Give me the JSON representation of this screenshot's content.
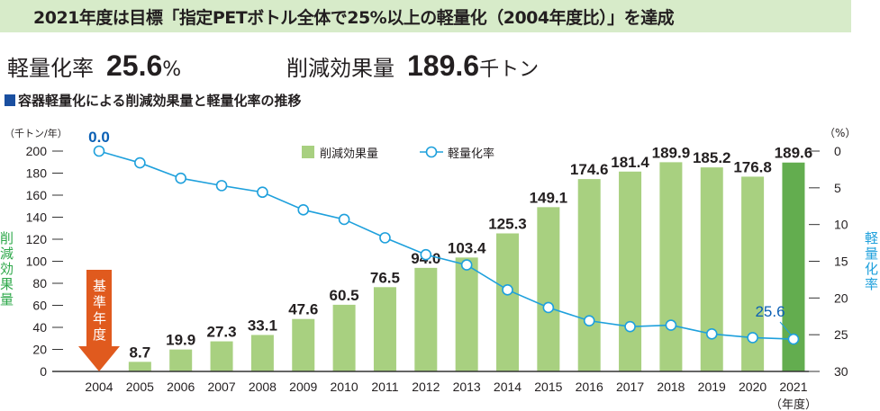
{
  "banner": {
    "title": "2021年度は目標「指定PETボトル全体で25%以上の軽量化（2004年度比）」を達成"
  },
  "kpis": {
    "rate_label": "軽量化率",
    "rate_value": "25.6",
    "rate_unit": "%",
    "reduction_label": "削減効果量",
    "reduction_value": "189.6",
    "reduction_unit": "千トン"
  },
  "subtitle": "容器軽量化による削減効果量と軽量化率の推移",
  "chart_data": {
    "type": "bar+line",
    "title": "容器軽量化による削減効果量と軽量化率の推移",
    "categories": [
      "2004",
      "2005",
      "2006",
      "2007",
      "2008",
      "2009",
      "2010",
      "2011",
      "2012",
      "2013",
      "2014",
      "2015",
      "2016",
      "2017",
      "2018",
      "2019",
      "2020",
      "2021"
    ],
    "xlabel": "（年度）",
    "left_axis": {
      "label": "削減効果量",
      "unit": "（千トン/年）",
      "range": [
        0,
        200
      ],
      "ticks": [
        0,
        20,
        40,
        60,
        80,
        100,
        120,
        140,
        160,
        180,
        200
      ]
    },
    "right_axis": {
      "label": "軽量化率",
      "unit": "（%）",
      "range": [
        0,
        30
      ],
      "inverted": true,
      "ticks": [
        0,
        5,
        10,
        15,
        20,
        25,
        30
      ]
    },
    "series": [
      {
        "name": "削減効果量",
        "type": "bar",
        "axis": "left",
        "values": [
          null,
          8.7,
          19.9,
          27.3,
          33.1,
          47.6,
          60.5,
          76.5,
          94.0,
          103.4,
          125.3,
          149.1,
          174.6,
          181.4,
          189.9,
          185.2,
          176.8,
          189.6
        ],
        "labels": [
          "",
          "8.7",
          "19.9",
          "27.3",
          "33.1",
          "47.6",
          "60.5",
          "76.5",
          "94.0",
          "103.4",
          "125.3",
          "149.1",
          "174.6",
          "181.4",
          "189.9",
          "185.2",
          "176.8",
          "189.6"
        ],
        "color": "#a8d080",
        "highlight_color": "#63ad4f"
      },
      {
        "name": "軽量化率",
        "type": "line",
        "axis": "right",
        "values": [
          0.0,
          1.6,
          3.7,
          4.7,
          5.6,
          8.0,
          9.3,
          11.8,
          14.1,
          15.5,
          18.9,
          21.3,
          23.1,
          23.9,
          23.7,
          24.9,
          25.4,
          25.6
        ],
        "labels": {
          "first": "0.0",
          "last": "25.6"
        },
        "color": "#1ea0dc",
        "label_color": "#0a5fb4"
      }
    ],
    "base_year_marker": {
      "text": "基準年度",
      "color": "#e05a1e"
    },
    "legend": "top-center"
  }
}
